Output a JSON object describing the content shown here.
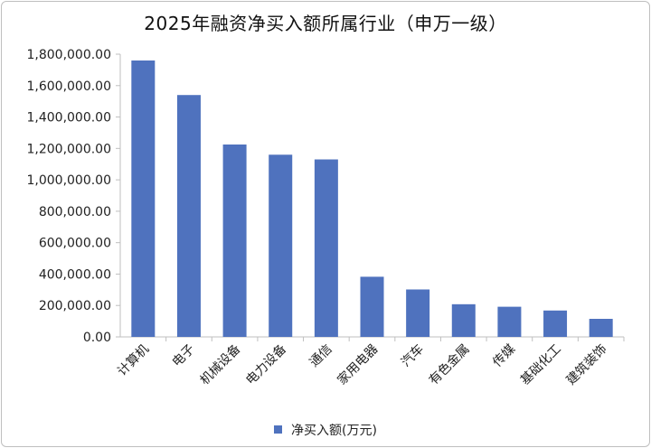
{
  "chart_data": {
    "type": "bar",
    "title": "2025年融资净买入额所属行业（申万一级）",
    "categories": [
      "计算机",
      "电子",
      "机械设备",
      "电力设备",
      "通信",
      "家用电器",
      "汽车",
      "有色金属",
      "传媒",
      "基础化工",
      "建筑装饰"
    ],
    "series": [
      {
        "name": "净买入额(万元)",
        "values": [
          1760000,
          1540000,
          1225000,
          1160000,
          1130000,
          383000,
          302000,
          208000,
          192000,
          168000,
          115000
        ],
        "color": "#4f72be"
      }
    ],
    "ylim": [
      0,
      1800000
    ],
    "yticks": [
      "0.00",
      "200,000.00",
      "400,000.00",
      "600,000.00",
      "800,000.00",
      "1,000,000.00",
      "1,200,000.00",
      "1,400,000.00",
      "1,600,000.00",
      "1,800,000.00"
    ],
    "xlabel": "",
    "ylabel": "",
    "grid": false,
    "legend_position": "bottom"
  }
}
